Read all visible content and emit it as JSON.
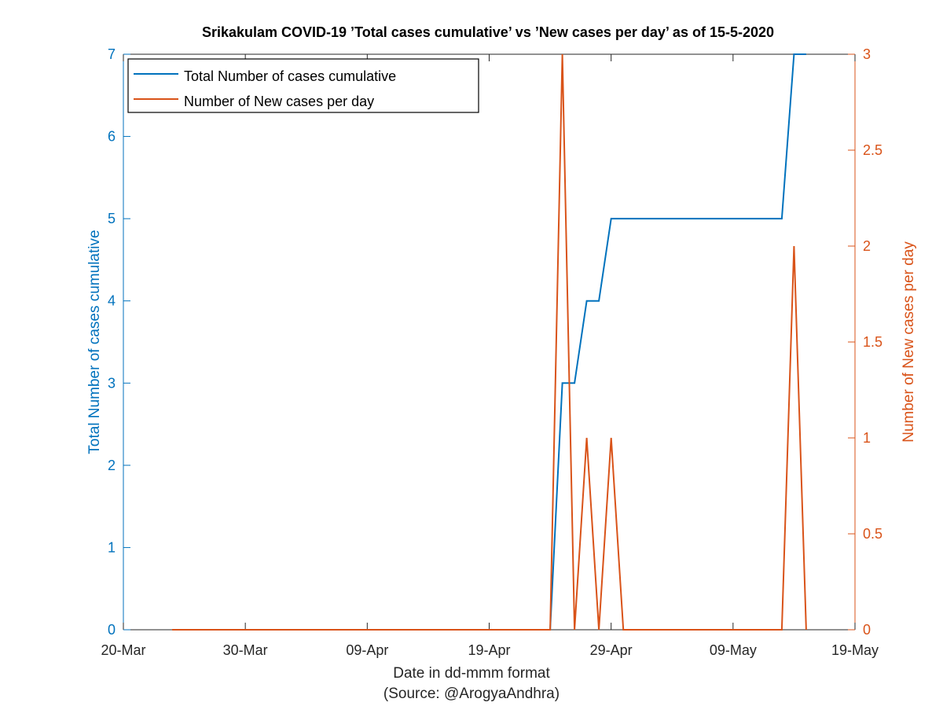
{
  "chart_data": {
    "type": "line",
    "title": "Srikakulam COVID-19 ’Total cases cumulative’ vs ’New cases per day’ as of 15-5-2020",
    "xlabel": "Date in dd-mmm format",
    "source_label": "(Source: @ArogyaAndhra)",
    "x_ticks": [
      "20-Mar",
      "30-Mar",
      "09-Apr",
      "19-Apr",
      "29-Apr",
      "09-May",
      "19-May"
    ],
    "x_range": [
      "2020-03-20",
      "2020-05-19"
    ],
    "y_left": {
      "label": "Total Number of cases cumulative",
      "ylim": [
        0,
        7
      ],
      "ticks": [
        "0",
        "1",
        "2",
        "3",
        "4",
        "5",
        "6",
        "7"
      ],
      "color": "#0072BD"
    },
    "y_right": {
      "label": "Number of New cases per day",
      "ylim": [
        0,
        3
      ],
      "ticks": [
        "0",
        "0.5",
        "1",
        "1.5",
        "2",
        "2.5",
        "3"
      ],
      "color": "#D95319"
    },
    "legend": {
      "placement": "top-left",
      "entries": [
        "Total Number of cases cumulative",
        "Number of New cases per day"
      ]
    },
    "grid": false,
    "series": [
      {
        "name": "Total Number of cases cumulative",
        "axis": "left",
        "color": "#0072BD",
        "points": [
          [
            "2020-04-24",
            0
          ],
          [
            "2020-04-25",
            3
          ],
          [
            "2020-04-26",
            3
          ],
          [
            "2020-04-27",
            4
          ],
          [
            "2020-04-28",
            4
          ],
          [
            "2020-04-29",
            5
          ],
          [
            "2020-05-13",
            5
          ],
          [
            "2020-05-14",
            7
          ],
          [
            "2020-05-15",
            7
          ]
        ]
      },
      {
        "name": "Number of New cases per day",
        "axis": "right",
        "color": "#D95319",
        "points": [
          [
            "2020-03-24",
            0
          ],
          [
            "2020-04-24",
            0
          ],
          [
            "2020-04-25",
            3
          ],
          [
            "2020-04-26",
            0
          ],
          [
            "2020-04-27",
            1
          ],
          [
            "2020-04-28",
            0
          ],
          [
            "2020-04-29",
            1
          ],
          [
            "2020-04-30",
            0
          ],
          [
            "2020-05-13",
            0
          ],
          [
            "2020-05-14",
            2
          ],
          [
            "2020-05-15",
            0
          ]
        ]
      }
    ]
  }
}
